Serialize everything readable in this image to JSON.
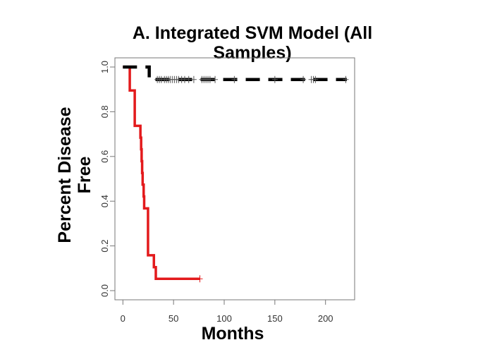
{
  "chart_data": {
    "type": "line",
    "title_lines": [
      "A. Integrated SVM Model (All",
      "Samples)"
    ],
    "xlabel": "Months",
    "ylabel_lines": [
      "Percent Disease",
      "Free"
    ],
    "xlim": [
      0,
      230
    ],
    "ylim": [
      0,
      1
    ],
    "xticks": [
      0,
      50,
      100,
      150,
      200
    ],
    "xtick_labels": [
      "0",
      "50",
      "100",
      "150",
      "200"
    ],
    "yticks": [
      0,
      0.2,
      0.4,
      0.6,
      0.8,
      1.0
    ],
    "ytick_labels": [
      "0.0",
      "0.2",
      "0.4",
      "0.6",
      "0.8",
      "1.0"
    ],
    "grid": false,
    "series": [
      {
        "color": "#e31a1c",
        "style": "solid step",
        "steps": [
          [
            0,
            1.0
          ],
          [
            6.8,
            0.895
          ],
          [
            11.7,
            0.737
          ],
          [
            17.3,
            0.684
          ],
          [
            18,
            0.632
          ],
          [
            18.5,
            0.579
          ],
          [
            19,
            0.526
          ],
          [
            19.5,
            0.474
          ],
          [
            20.5,
            0.421
          ],
          [
            21,
            0.368
          ],
          [
            24.8,
            0.158
          ],
          [
            30.6,
            0.105
          ],
          [
            32.5,
            0.053
          ]
        ],
        "end": 76,
        "censored": [
          76
        ]
      },
      {
        "color": "#000000",
        "style": "dashed step",
        "steps": [
          [
            0,
            1.0
          ],
          [
            26,
            0.944
          ]
        ],
        "end": 221,
        "censored": [
          34,
          36,
          38,
          41,
          43,
          45,
          47,
          49,
          51,
          53,
          55,
          58,
          61,
          65,
          70,
          78,
          80,
          82,
          84,
          86,
          91,
          110,
          150,
          178,
          186,
          188,
          190,
          220
        ]
      }
    ]
  }
}
